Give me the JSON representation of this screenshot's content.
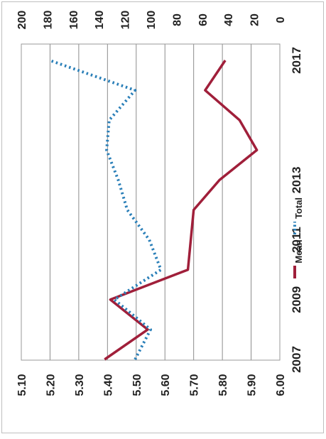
{
  "chart_data": {
    "type": "line",
    "orientation": "rotated-90",
    "x": [
      "2007",
      "2008",
      "2009",
      "2010",
      "2011",
      "2012",
      "2013",
      "2014",
      "2015",
      "2016",
      "2017"
    ],
    "x_tick_labels": [
      "2007",
      "2009",
      "2011",
      "2013",
      "2017"
    ],
    "y_left": {
      "ticks": [
        "5.10",
        "5.20",
        "5.30",
        "5.40",
        "5.50",
        "5.60",
        "5.70",
        "5.80",
        "5.90",
        "6.00"
      ],
      "range": [
        5.1,
        6.0
      ]
    },
    "y_right": {
      "ticks": [
        "0",
        "20",
        "40",
        "60",
        "80",
        "100",
        "120",
        "140",
        "160",
        "180",
        "200"
      ],
      "range": [
        0,
        200
      ]
    },
    "series": [
      {
        "name": "Mean",
        "axis": "left",
        "color": "#a01f3a",
        "style": "solid",
        "values": [
          5.39,
          5.54,
          5.41,
          5.68,
          5.69,
          5.7,
          5.79,
          5.92,
          5.86,
          5.74,
          5.81
        ]
      },
      {
        "name": "Total",
        "axis": "right",
        "color": "#2a7fb8",
        "style": "dotted",
        "values": [
          112,
          100,
          128,
          92,
          101,
          118,
          125,
          134,
          132,
          112,
          178
        ]
      }
    ],
    "legend": {
      "position": "bottom",
      "entries": [
        "Mean",
        "Total"
      ]
    },
    "grid": true
  }
}
